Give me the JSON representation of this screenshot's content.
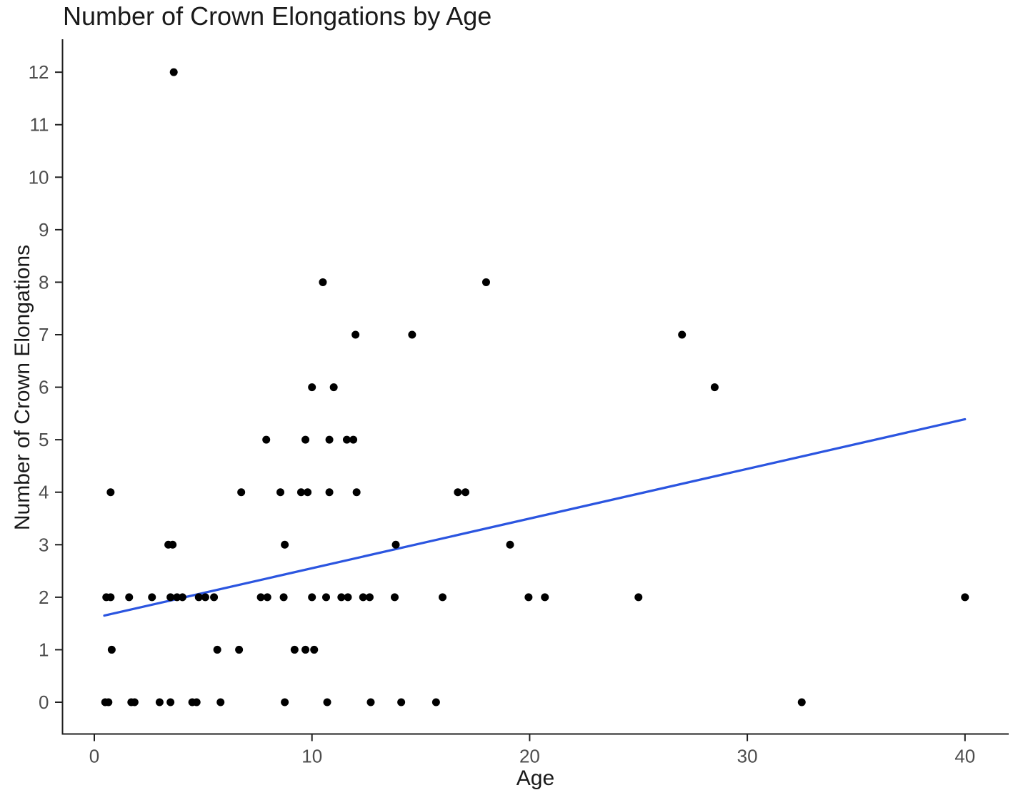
{
  "figure": {
    "title": "Number of Crown Elongations by Age",
    "xlabel": "Age",
    "ylabel": "Number of Crown Elongations"
  },
  "chart_data": {
    "type": "scatter",
    "title": "Number of Crown Elongations by Age",
    "xlabel": "Age",
    "ylabel": "Number of Crown Elongations",
    "xlim": [
      -1.5,
      41.9
    ],
    "ylim": [
      -0.6,
      12.6
    ],
    "x_ticks": [
      0,
      10,
      20,
      30,
      40
    ],
    "y_ticks": [
      0,
      1,
      2,
      3,
      4,
      5,
      6,
      7,
      8,
      9,
      10,
      11,
      12
    ],
    "grid": "off",
    "legend": "none",
    "point_color": "#000000",
    "axis_color": "#1f1f1f",
    "tick_label_color": "#4d4d4d",
    "trend_line": {
      "type": "linear-fit",
      "x_start": 0.46,
      "y_start": 1.65,
      "x_end": 40.0,
      "y_end": 5.39,
      "color": "#2B55E0"
    },
    "points": [
      [
        0.5,
        0
      ],
      [
        0.65,
        0
      ],
      [
        1.7,
        0
      ],
      [
        1.85,
        0
      ],
      [
        3.0,
        0
      ],
      [
        3.5,
        0
      ],
      [
        4.5,
        0
      ],
      [
        4.7,
        0
      ],
      [
        5.8,
        0
      ],
      [
        8.75,
        0
      ],
      [
        10.7,
        0
      ],
      [
        12.7,
        0
      ],
      [
        14.1,
        0
      ],
      [
        15.7,
        0
      ],
      [
        32.5,
        0
      ],
      [
        0.8,
        1
      ],
      [
        5.65,
        1
      ],
      [
        6.65,
        1
      ],
      [
        9.2,
        1
      ],
      [
        9.7,
        1
      ],
      [
        10.1,
        1
      ],
      [
        0.55,
        2
      ],
      [
        0.75,
        2
      ],
      [
        1.6,
        2
      ],
      [
        2.65,
        2
      ],
      [
        3.5,
        2
      ],
      [
        3.8,
        2
      ],
      [
        4.05,
        2
      ],
      [
        4.8,
        2
      ],
      [
        5.1,
        2
      ],
      [
        5.5,
        2
      ],
      [
        7.65,
        2
      ],
      [
        7.95,
        2
      ],
      [
        8.7,
        2
      ],
      [
        10.0,
        2
      ],
      [
        10.65,
        2
      ],
      [
        11.35,
        2
      ],
      [
        11.65,
        2
      ],
      [
        12.35,
        2
      ],
      [
        12.65,
        2
      ],
      [
        13.8,
        2
      ],
      [
        16.0,
        2
      ],
      [
        19.95,
        2
      ],
      [
        20.7,
        2
      ],
      [
        25.0,
        2
      ],
      [
        40.0,
        2
      ],
      [
        3.4,
        3
      ],
      [
        3.6,
        3
      ],
      [
        8.75,
        3
      ],
      [
        13.85,
        3
      ],
      [
        19.1,
        3
      ],
      [
        0.75,
        4
      ],
      [
        6.75,
        4
      ],
      [
        8.55,
        4
      ],
      [
        9.5,
        4
      ],
      [
        9.8,
        4
      ],
      [
        10.8,
        4
      ],
      [
        12.05,
        4
      ],
      [
        16.7,
        4
      ],
      [
        17.05,
        4
      ],
      [
        7.9,
        5
      ],
      [
        9.7,
        5
      ],
      [
        10.8,
        5
      ],
      [
        11.6,
        5
      ],
      [
        11.9,
        5
      ],
      [
        10.0,
        6
      ],
      [
        11.0,
        6
      ],
      [
        28.5,
        6
      ],
      [
        12.0,
        7
      ],
      [
        14.6,
        7
      ],
      [
        27.0,
        7
      ],
      [
        10.5,
        8
      ],
      [
        18.0,
        8
      ],
      [
        3.65,
        12
      ]
    ]
  }
}
